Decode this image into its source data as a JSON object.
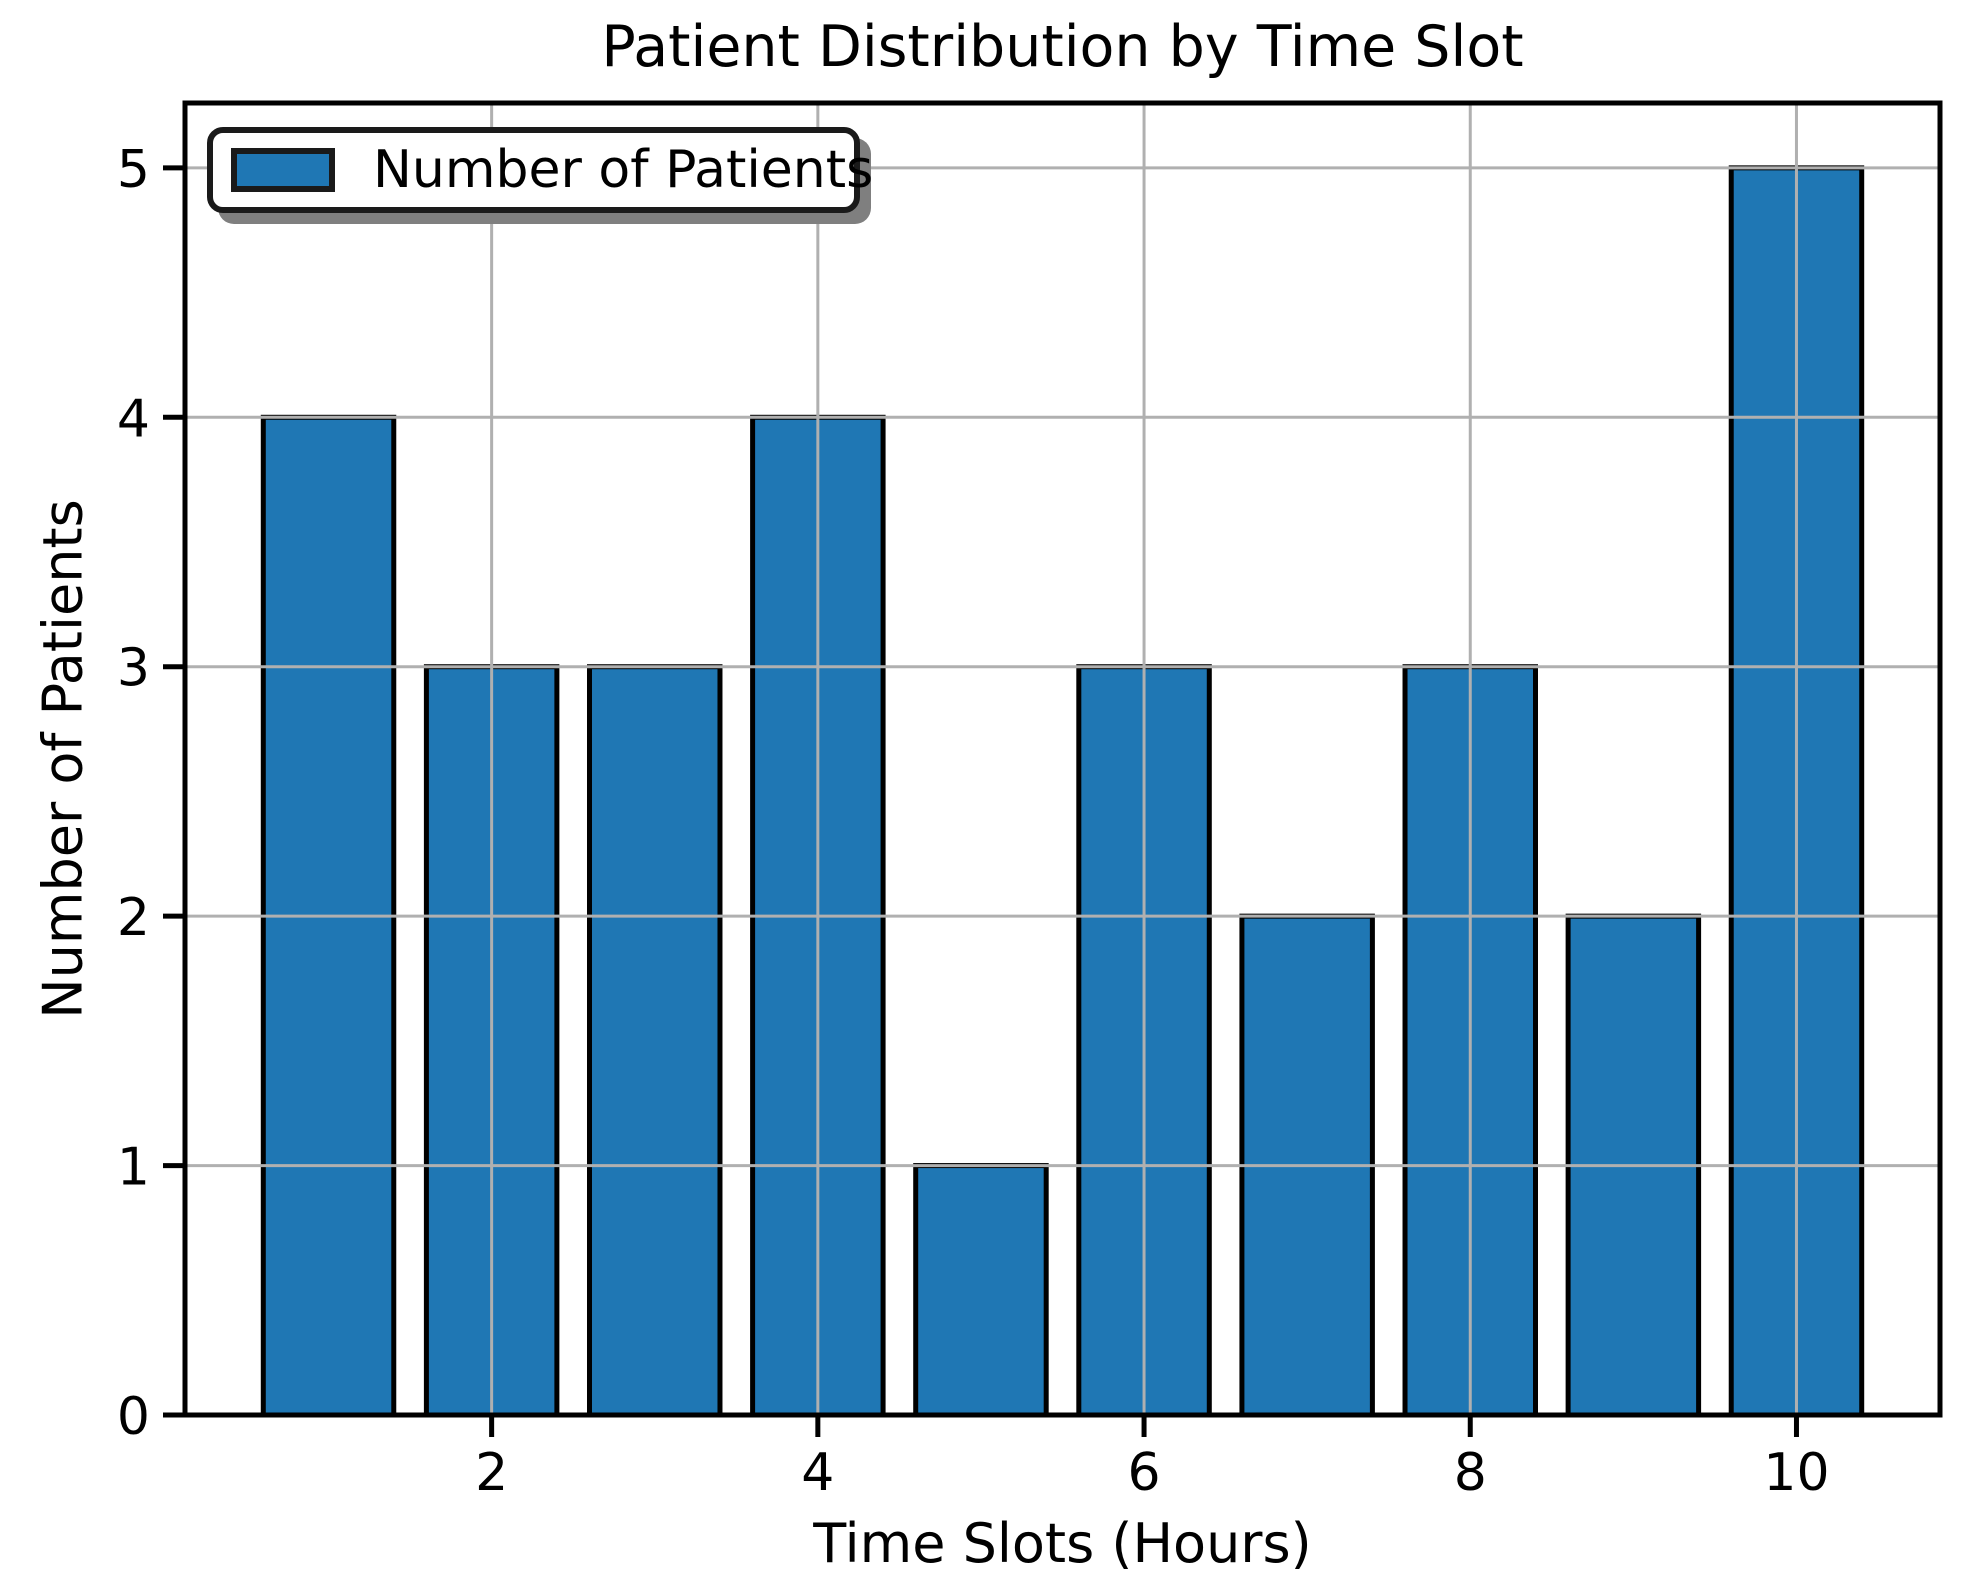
{
  "chart_data": {
    "type": "bar",
    "title": "Patient Distribution by Time Slot",
    "xlabel": "Time Slots (Hours)",
    "ylabel": "Number of Patients",
    "legend": [
      "Number of Patients"
    ],
    "legend_position": "upper left",
    "x": [
      1,
      2,
      3,
      4,
      5,
      6,
      7,
      8,
      9,
      10
    ],
    "values": [
      4,
      3,
      3,
      4,
      1,
      3,
      2,
      3,
      2,
      5
    ],
    "bar_width": 0.8,
    "xticks": [
      2,
      4,
      6,
      8,
      10
    ],
    "yticks": [
      0,
      1,
      2,
      3,
      4,
      5
    ],
    "xlim": [
      0.12,
      10.88
    ],
    "ylim": [
      0,
      5.26
    ],
    "grid": true,
    "grid_over_bars": true,
    "colors": {
      "bar_fill": "#1f77b4",
      "bar_edge": "#000000",
      "grid": "#b0b0b0",
      "spine": "#000000",
      "text": "#000000",
      "background": "#ffffff"
    }
  }
}
